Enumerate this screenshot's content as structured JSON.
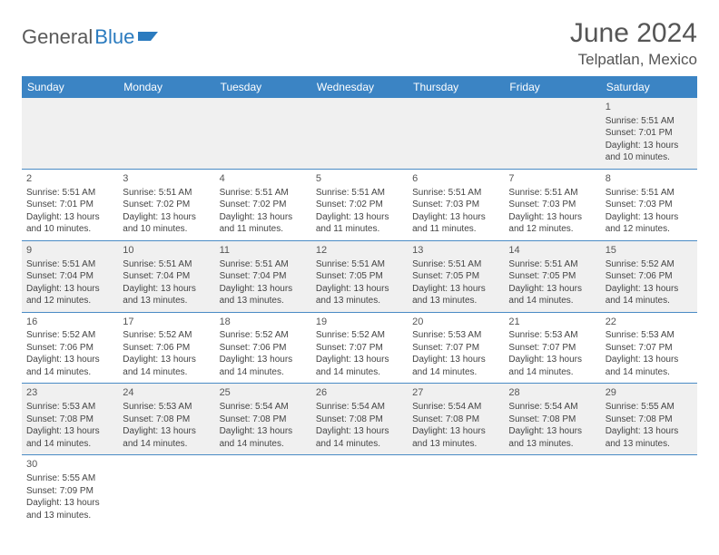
{
  "brand": {
    "part1": "General",
    "part2": "Blue"
  },
  "title": "June 2024",
  "location": "Telpatlan, Mexico",
  "colors": {
    "header_bg": "#3b84c4",
    "header_fg": "#ffffff",
    "row_alt_bg": "#f0f0f0",
    "row_bg": "#ffffff",
    "border": "#4a8bc5",
    "brand_gray": "#5a5a5a",
    "brand_blue": "#2b7bbf",
    "text": "#444444"
  },
  "day_headers": [
    "Sunday",
    "Monday",
    "Tuesday",
    "Wednesday",
    "Thursday",
    "Friday",
    "Saturday"
  ],
  "weeks": [
    [
      null,
      null,
      null,
      null,
      null,
      null,
      {
        "n": "1",
        "sunrise": "5:51 AM",
        "sunset": "7:01 PM",
        "daylight": "13 hours and 10 minutes."
      }
    ],
    [
      {
        "n": "2",
        "sunrise": "5:51 AM",
        "sunset": "7:01 PM",
        "daylight": "13 hours and 10 minutes."
      },
      {
        "n": "3",
        "sunrise": "5:51 AM",
        "sunset": "7:02 PM",
        "daylight": "13 hours and 10 minutes."
      },
      {
        "n": "4",
        "sunrise": "5:51 AM",
        "sunset": "7:02 PM",
        "daylight": "13 hours and 11 minutes."
      },
      {
        "n": "5",
        "sunrise": "5:51 AM",
        "sunset": "7:02 PM",
        "daylight": "13 hours and 11 minutes."
      },
      {
        "n": "6",
        "sunrise": "5:51 AM",
        "sunset": "7:03 PM",
        "daylight": "13 hours and 11 minutes."
      },
      {
        "n": "7",
        "sunrise": "5:51 AM",
        "sunset": "7:03 PM",
        "daylight": "13 hours and 12 minutes."
      },
      {
        "n": "8",
        "sunrise": "5:51 AM",
        "sunset": "7:03 PM",
        "daylight": "13 hours and 12 minutes."
      }
    ],
    [
      {
        "n": "9",
        "sunrise": "5:51 AM",
        "sunset": "7:04 PM",
        "daylight": "13 hours and 12 minutes."
      },
      {
        "n": "10",
        "sunrise": "5:51 AM",
        "sunset": "7:04 PM",
        "daylight": "13 hours and 13 minutes."
      },
      {
        "n": "11",
        "sunrise": "5:51 AM",
        "sunset": "7:04 PM",
        "daylight": "13 hours and 13 minutes."
      },
      {
        "n": "12",
        "sunrise": "5:51 AM",
        "sunset": "7:05 PM",
        "daylight": "13 hours and 13 minutes."
      },
      {
        "n": "13",
        "sunrise": "5:51 AM",
        "sunset": "7:05 PM",
        "daylight": "13 hours and 13 minutes."
      },
      {
        "n": "14",
        "sunrise": "5:51 AM",
        "sunset": "7:05 PM",
        "daylight": "13 hours and 14 minutes."
      },
      {
        "n": "15",
        "sunrise": "5:52 AM",
        "sunset": "7:06 PM",
        "daylight": "13 hours and 14 minutes."
      }
    ],
    [
      {
        "n": "16",
        "sunrise": "5:52 AM",
        "sunset": "7:06 PM",
        "daylight": "13 hours and 14 minutes."
      },
      {
        "n": "17",
        "sunrise": "5:52 AM",
        "sunset": "7:06 PM",
        "daylight": "13 hours and 14 minutes."
      },
      {
        "n": "18",
        "sunrise": "5:52 AM",
        "sunset": "7:06 PM",
        "daylight": "13 hours and 14 minutes."
      },
      {
        "n": "19",
        "sunrise": "5:52 AM",
        "sunset": "7:07 PM",
        "daylight": "13 hours and 14 minutes."
      },
      {
        "n": "20",
        "sunrise": "5:53 AM",
        "sunset": "7:07 PM",
        "daylight": "13 hours and 14 minutes."
      },
      {
        "n": "21",
        "sunrise": "5:53 AM",
        "sunset": "7:07 PM",
        "daylight": "13 hours and 14 minutes."
      },
      {
        "n": "22",
        "sunrise": "5:53 AM",
        "sunset": "7:07 PM",
        "daylight": "13 hours and 14 minutes."
      }
    ],
    [
      {
        "n": "23",
        "sunrise": "5:53 AM",
        "sunset": "7:08 PM",
        "daylight": "13 hours and 14 minutes."
      },
      {
        "n": "24",
        "sunrise": "5:53 AM",
        "sunset": "7:08 PM",
        "daylight": "13 hours and 14 minutes."
      },
      {
        "n": "25",
        "sunrise": "5:54 AM",
        "sunset": "7:08 PM",
        "daylight": "13 hours and 14 minutes."
      },
      {
        "n": "26",
        "sunrise": "5:54 AM",
        "sunset": "7:08 PM",
        "daylight": "13 hours and 14 minutes."
      },
      {
        "n": "27",
        "sunrise": "5:54 AM",
        "sunset": "7:08 PM",
        "daylight": "13 hours and 13 minutes."
      },
      {
        "n": "28",
        "sunrise": "5:54 AM",
        "sunset": "7:08 PM",
        "daylight": "13 hours and 13 minutes."
      },
      {
        "n": "29",
        "sunrise": "5:55 AM",
        "sunset": "7:08 PM",
        "daylight": "13 hours and 13 minutes."
      }
    ],
    [
      {
        "n": "30",
        "sunrise": "5:55 AM",
        "sunset": "7:09 PM",
        "daylight": "13 hours and 13 minutes."
      },
      null,
      null,
      null,
      null,
      null,
      null
    ]
  ],
  "labels": {
    "sunrise": "Sunrise: ",
    "sunset": "Sunset: ",
    "daylight": "Daylight: "
  }
}
